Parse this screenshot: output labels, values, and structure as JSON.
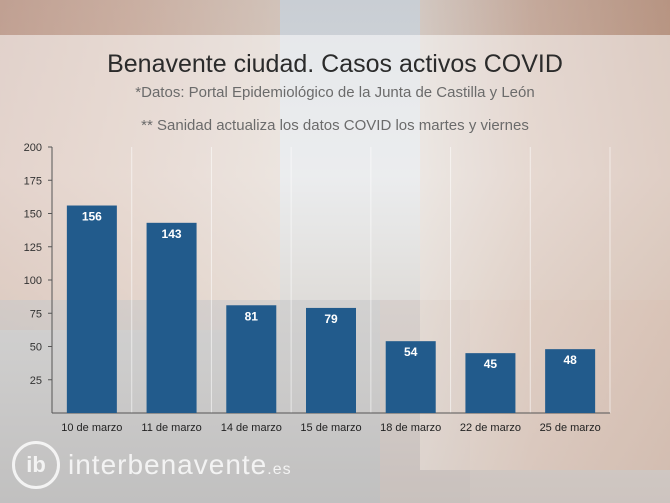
{
  "chart_data": {
    "type": "bar",
    "title": "Benavente ciudad. Casos activos COVID",
    "subtitle": "*Datos: Portal Epidemiológico de la Junta de Castilla y León",
    "note": "** Sanidad actualiza los datos COVID los martes y viernes",
    "categories": [
      "10 de marzo",
      "11 de marzo",
      "14 de marzo",
      "15 de marzo",
      "18 de marzo",
      "22 de marzo",
      "25 de marzo"
    ],
    "values": [
      156,
      143,
      81,
      79,
      54,
      45,
      48
    ],
    "ylim": [
      0,
      200
    ],
    "yticks": [
      25,
      50,
      75,
      100,
      125,
      150,
      175,
      200
    ],
    "bar_color": "#225b8c",
    "label_color": "#ffffff",
    "grid": true
  },
  "watermark": {
    "logo": "ib",
    "text": "interbenavente",
    "suffix": ".es"
  }
}
